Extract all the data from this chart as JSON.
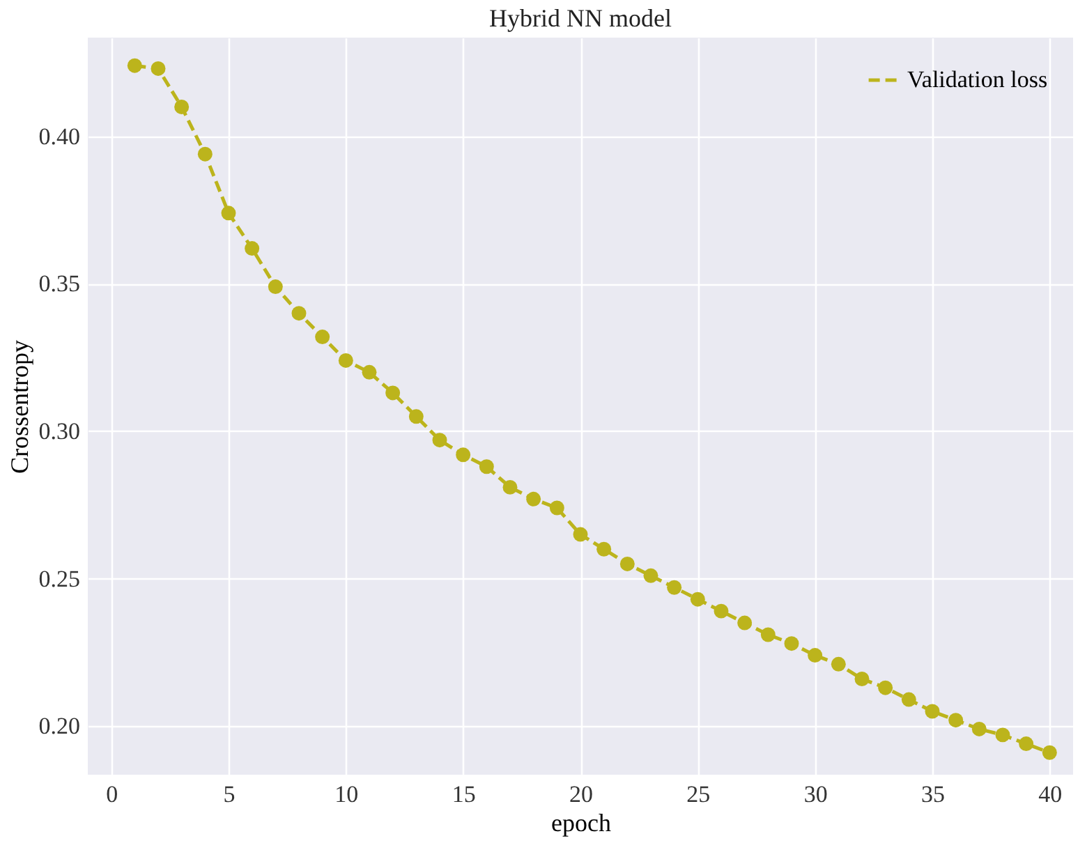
{
  "chart_data": {
    "type": "line",
    "title": "Hybrid NN model",
    "xlabel": "epoch",
    "ylabel": "Crossentropy",
    "x": [
      1,
      2,
      3,
      4,
      5,
      6,
      7,
      8,
      9,
      10,
      11,
      12,
      13,
      14,
      15,
      16,
      17,
      18,
      19,
      20,
      21,
      22,
      23,
      24,
      25,
      26,
      27,
      28,
      29,
      30,
      31,
      32,
      33,
      34,
      35,
      36,
      37,
      38,
      39,
      40
    ],
    "series": [
      {
        "name": "Validation loss",
        "color": "#bcb41c",
        "values": [
          0.424,
          0.423,
          0.41,
          0.394,
          0.374,
          0.362,
          0.349,
          0.34,
          0.332,
          0.324,
          0.32,
          0.313,
          0.305,
          0.297,
          0.292,
          0.288,
          0.281,
          0.277,
          0.274,
          0.265,
          0.26,
          0.255,
          0.251,
          0.247,
          0.243,
          0.239,
          0.235,
          0.231,
          0.228,
          0.224,
          0.221,
          0.216,
          0.213,
          0.209,
          0.205,
          0.202,
          0.199,
          0.197,
          0.194,
          0.191
        ]
      }
    ],
    "xlim": [
      -1,
      41
    ],
    "xticks": [
      0,
      5,
      10,
      15,
      20,
      25,
      30,
      35,
      40
    ],
    "ylim": [
      0.1835,
      0.4335
    ],
    "yticks": [
      {
        "value": 0.2,
        "label": "0.20"
      },
      0.25,
      {
        "value": 0.3,
        "label": "0.30"
      },
      0.35,
      {
        "value": 0.4,
        "label": "0.40"
      }
    ],
    "grid": true,
    "legend": "top right",
    "marker": "circle",
    "line_style": "dashed"
  }
}
